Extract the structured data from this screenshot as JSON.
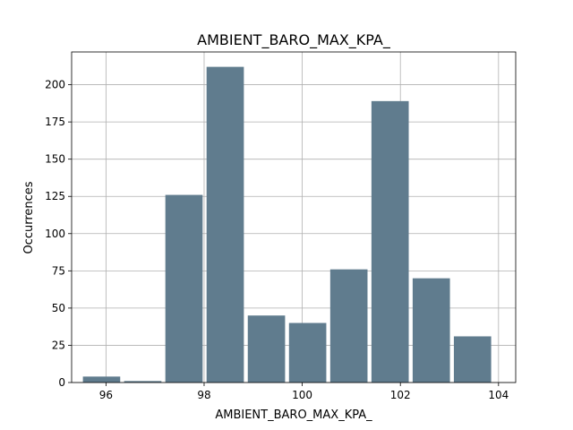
{
  "chart_data": {
    "type": "bar",
    "title": "AMBIENT_BARO_MAX_KPA_",
    "xlabel": "AMBIENT_BARO_MAX_KPA_",
    "ylabel": "Occurrences",
    "xlim": [
      95.3,
      104.35
    ],
    "ylim": [
      0,
      222
    ],
    "xticks": [
      96,
      98,
      100,
      102,
      104
    ],
    "yticks": [
      0,
      25,
      50,
      75,
      100,
      125,
      150,
      175,
      200
    ],
    "grid": true,
    "bar_color": "#607c8e",
    "bins": [
      {
        "x0": 95.53,
        "x1": 96.29,
        "value": 4
      },
      {
        "x0": 96.37,
        "x1": 97.13,
        "value": 1
      },
      {
        "x0": 97.21,
        "x1": 97.97,
        "value": 126
      },
      {
        "x0": 98.05,
        "x1": 98.81,
        "value": 212
      },
      {
        "x0": 98.89,
        "x1": 99.65,
        "value": 45
      },
      {
        "x0": 99.73,
        "x1": 100.49,
        "value": 40
      },
      {
        "x0": 100.57,
        "x1": 101.33,
        "value": 76
      },
      {
        "x0": 101.41,
        "x1": 102.17,
        "value": 189
      },
      {
        "x0": 102.25,
        "x1": 103.01,
        "value": 70
      },
      {
        "x0": 103.09,
        "x1": 103.85,
        "value": 31
      }
    ]
  }
}
